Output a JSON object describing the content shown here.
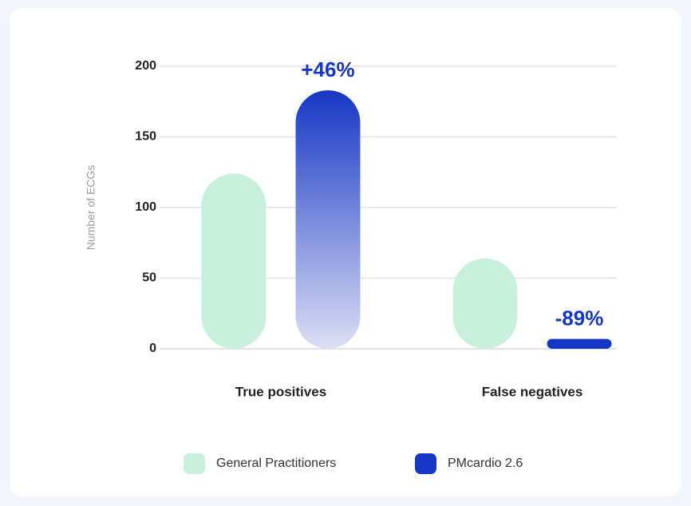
{
  "chart_data": {
    "type": "bar",
    "y_label": "Number of ECGs",
    "categories": [
      "True positives",
      "False negatives"
    ],
    "series": [
      {
        "name": "General Practitioners",
        "color": "#c9f0dc",
        "values": [
          124,
          64
        ]
      },
      {
        "name": "PMcardio 2.6",
        "color": "#1537c4",
        "values": [
          183,
          7
        ]
      }
    ],
    "annotations": [
      "+46%",
      "-89%"
    ],
    "ylim": [
      0,
      200
    ],
    "yticks": [
      0,
      50,
      100,
      150,
      200
    ],
    "grid": true
  }
}
